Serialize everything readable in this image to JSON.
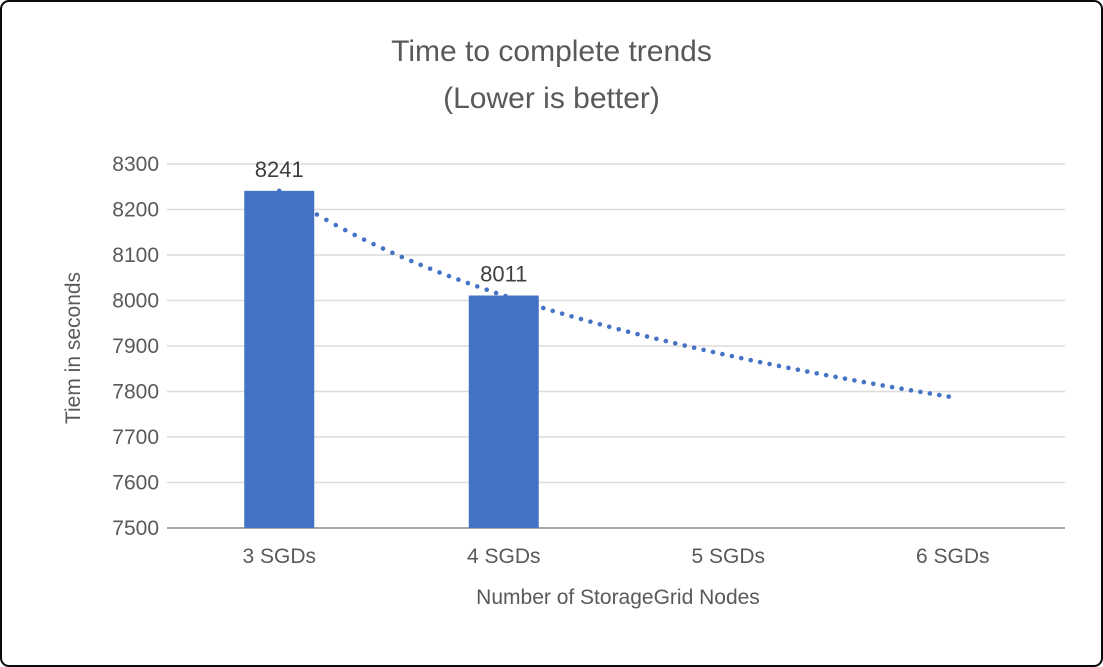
{
  "window": {
    "background": "#ffffff",
    "border_color": "#0a0a0a"
  },
  "chart_data": {
    "type": "bar",
    "title_lines": [
      "Time to complete trends",
      "(Lower is better)"
    ],
    "title": "Time to complete trends (Lower is better)",
    "categories": [
      "3 SGDs",
      "4 SGDs",
      "5 SGDs",
      "6 SGDs"
    ],
    "series": [
      {
        "name": "Time to complete",
        "values": [
          8241,
          8011,
          null,
          null
        ]
      }
    ],
    "data_labels": [
      "8241",
      "8011"
    ],
    "xlabel": "Number of StorageGrid Nodes",
    "ylabel": "Tiem in seconds",
    "ylim": [
      7500,
      8300
    ],
    "ytick_interval": 100,
    "yticks": [
      "8300",
      "8200",
      "8100",
      "8000",
      "7900",
      "7800",
      "7700",
      "7600",
      "7500"
    ],
    "grid": true,
    "legend": "none",
    "trendline": {
      "type": "power",
      "style": "dotted",
      "span_categories": [
        1,
        4
      ],
      "estimated_values": [
        8241,
        8011,
        7879,
        7787
      ],
      "dot_step": 0.042
    },
    "colors": {
      "bar": "#4472C4",
      "trendline": "#4472C4",
      "gridline": "#DCDCDC",
      "axis_line": "#A6A6A6",
      "text": "#595959",
      "data_label": "#3F3F3F"
    }
  }
}
